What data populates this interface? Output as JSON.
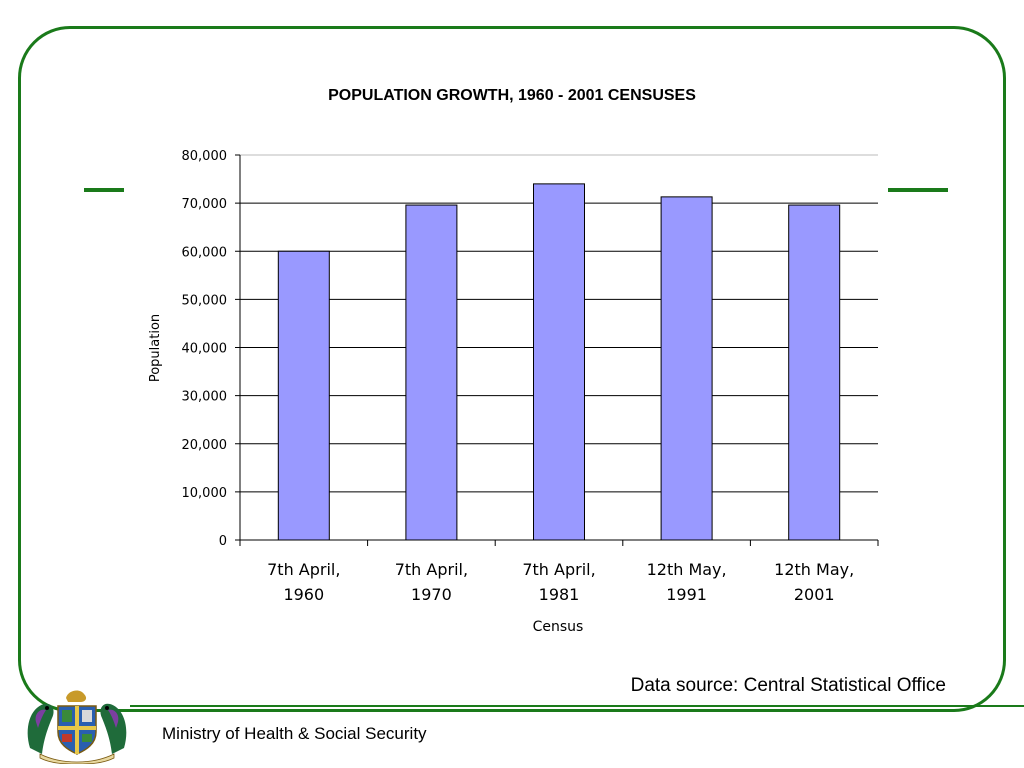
{
  "chart_data": {
    "type": "bar",
    "title": "POPULATION GROWTH, 1960 - 2001 CENSUSES",
    "xlabel": "Census",
    "ylabel": "Population",
    "ylim": [
      0,
      80000
    ],
    "yticks": [
      0,
      10000,
      20000,
      30000,
      40000,
      50000,
      60000,
      70000,
      80000
    ],
    "ytick_labels": [
      "0",
      "10,000",
      "20,000",
      "30,000",
      "40,000",
      "50,000",
      "60,000",
      "70,000",
      "80,000"
    ],
    "categories": [
      [
        "7th April,",
        "1960"
      ],
      [
        "7th April,",
        "1970"
      ],
      [
        "7th April,",
        "1981"
      ],
      [
        "12th May,",
        "1991"
      ],
      [
        "12th May,",
        "2001"
      ]
    ],
    "values": [
      60000,
      69600,
      74000,
      71300,
      69600
    ],
    "grid": true,
    "bar_color": "#9999ff"
  },
  "footer": {
    "data_source": "Data source: Central Statistical Office",
    "ministry": "Ministry of Health & Social Security"
  },
  "colors": {
    "frame": "#1a7a1a",
    "bar": "#9999ff"
  },
  "icons": {
    "emblem": "coat-of-arms-icon"
  }
}
